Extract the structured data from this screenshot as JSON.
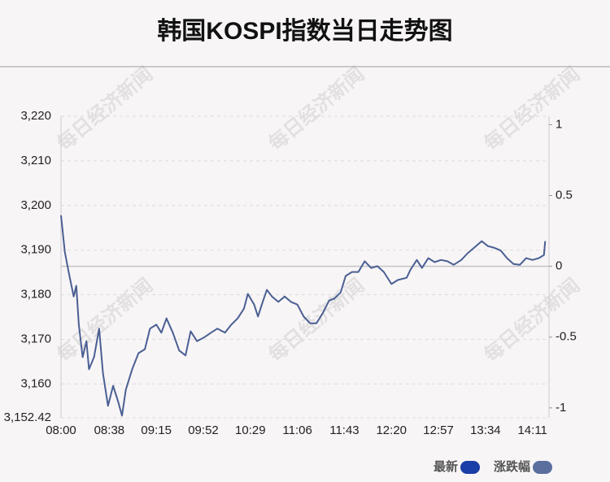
{
  "chart_data": {
    "type": "line",
    "title": "韩国KOSPI指数当日走势图",
    "watermark": "每日经济新闻",
    "x": [
      "08:00",
      "08:03",
      "08:06",
      "08:10",
      "08:12",
      "08:14",
      "08:17",
      "08:20",
      "08:22",
      "08:26",
      "08:30",
      "08:33",
      "08:37",
      "08:41",
      "08:45",
      "08:48",
      "08:51",
      "08:56",
      "09:01",
      "09:06",
      "09:10",
      "09:15",
      "09:19",
      "09:23",
      "09:28",
      "09:33",
      "09:38",
      "09:42",
      "09:47",
      "09:53",
      "09:58",
      "10:03",
      "10:09",
      "10:14",
      "10:19",
      "10:24",
      "10:27",
      "10:32",
      "10:35",
      "10:38",
      "10:42",
      "10:46",
      "10:51",
      "10:56",
      "11:01",
      "11:06",
      "11:11",
      "11:16",
      "11:21",
      "11:26",
      "11:31",
      "11:35",
      "11:40",
      "11:44",
      "11:49",
      "11:54",
      "11:59",
      "12:04",
      "12:09",
      "12:14",
      "12:20",
      "12:25",
      "12:32",
      "12:35",
      "12:40",
      "12:44",
      "12:49",
      "12:54",
      "12:59",
      "13:04",
      "13:09",
      "13:15",
      "13:20",
      "13:25",
      "13:31",
      "13:36",
      "13:41",
      "13:46",
      "13:51",
      "13:56",
      "14:01",
      "14:06",
      "14:11",
      "14:16",
      "14:20",
      "14:21"
    ],
    "series": [
      {
        "name": "最新",
        "color": "#4a5f92",
        "values": [
          3197.8,
          3189.6,
          3185.1,
          3179.6,
          3182.0,
          3173.3,
          3166.0,
          3169.6,
          3163.3,
          3166.0,
          3172.4,
          3162.4,
          3155.1,
          3159.6,
          3156.0,
          3152.9,
          3158.7,
          3163.3,
          3166.9,
          3167.8,
          3172.4,
          3173.3,
          3171.5,
          3174.7,
          3171.5,
          3167.5,
          3166.4,
          3171.8,
          3169.6,
          3170.5,
          3171.5,
          3172.4,
          3171.5,
          3173.3,
          3174.7,
          3176.9,
          3180.2,
          3177.8,
          3175.1,
          3177.8,
          3181.1,
          3179.6,
          3178.4,
          3179.6,
          3178.4,
          3177.8,
          3175.1,
          3173.6,
          3173.6,
          3175.9,
          3178.7,
          3179.1,
          3180.5,
          3184.2,
          3185.1,
          3185.1,
          3187.5,
          3186.0,
          3186.4,
          3185.1,
          3182.4,
          3183.3,
          3183.8,
          3185.6,
          3187.8,
          3186.0,
          3188.2,
          3187.3,
          3187.8,
          3187.5,
          3186.7,
          3187.8,
          3189.3,
          3190.5,
          3192.0,
          3190.9,
          3190.5,
          3189.9,
          3188.2,
          3186.9,
          3186.7,
          3188.2,
          3187.8,
          3188.2,
          3188.9,
          3192.0
        ]
      }
    ],
    "legend": [
      {
        "name": "最新",
        "color": "#1a3fa6"
      },
      {
        "name": "涨跌幅",
        "color": "#5a6f9e"
      }
    ],
    "xlim": [
      "08:00",
      "14:24"
    ],
    "xticks": [
      "08:00",
      "08:38",
      "09:15",
      "09:52",
      "10:29",
      "11:06",
      "11:43",
      "12:20",
      "12:57",
      "13:34",
      "14:11"
    ],
    "ylim": [
      3152.42,
      3220
    ],
    "yticks": [
      {
        "value": 3220,
        "label": "3,220"
      },
      {
        "value": 3210,
        "label": "3,210"
      },
      {
        "value": 3200,
        "label": "3,200"
      },
      {
        "value": 3190,
        "label": "3,190"
      },
      {
        "value": 3180,
        "label": "3,180"
      },
      {
        "value": 3170,
        "label": "3,170"
      },
      {
        "value": 3160,
        "label": "3,160"
      },
      {
        "value": 3152.42,
        "label": "3,152.42"
      }
    ],
    "y2lim": [
      -1.07,
      1.06
    ],
    "y2ticks": [
      1,
      0.5,
      0,
      -0.5,
      -1
    ],
    "grid": true,
    "zero_line": true
  }
}
